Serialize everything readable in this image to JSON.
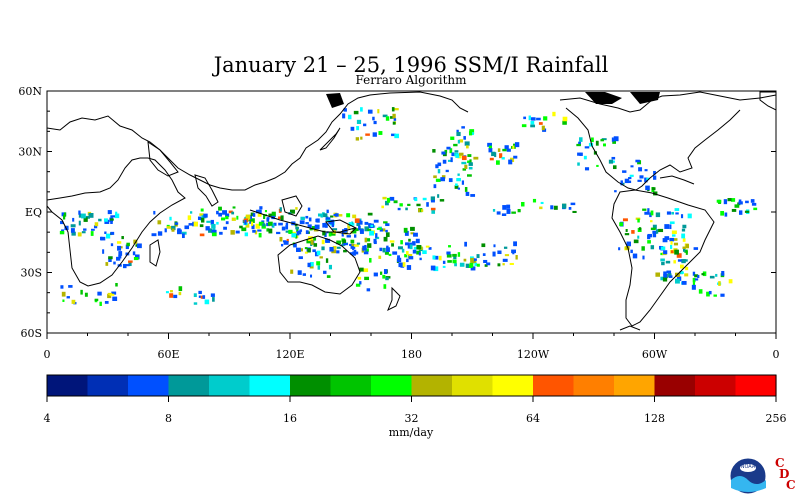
{
  "title": "January 21 – 25, 1996 SSM/I Rainfall",
  "subtitle": "Ferraro Algorithm",
  "map": {
    "lat_labels": [
      "60N",
      "30N",
      "EQ",
      "30S",
      "60S"
    ],
    "lon_labels": [
      "0",
      "60E",
      "120E",
      "180",
      "120W",
      "60W",
      "0"
    ],
    "lat_range": [
      -60,
      60
    ],
    "lon_range": [
      0,
      360
    ]
  },
  "colorbar": {
    "tick_labels": [
      "4",
      "8",
      "16",
      "32",
      "64",
      "128",
      "256"
    ],
    "units": "mm/day",
    "colors": [
      "#00157a",
      "#002fb5",
      "#0050ff",
      "#009999",
      "#00cccc",
      "#00ffff",
      "#008f00",
      "#00c400",
      "#00ff00",
      "#b3b300",
      "#e0e000",
      "#ffff00",
      "#ff5500",
      "#ff7f00",
      "#ffa500",
      "#990000",
      "#cc0000",
      "#ff0000"
    ]
  },
  "logo": {
    "noaa_text": "NOAA",
    "letters": [
      "C",
      "D",
      "C"
    ]
  }
}
